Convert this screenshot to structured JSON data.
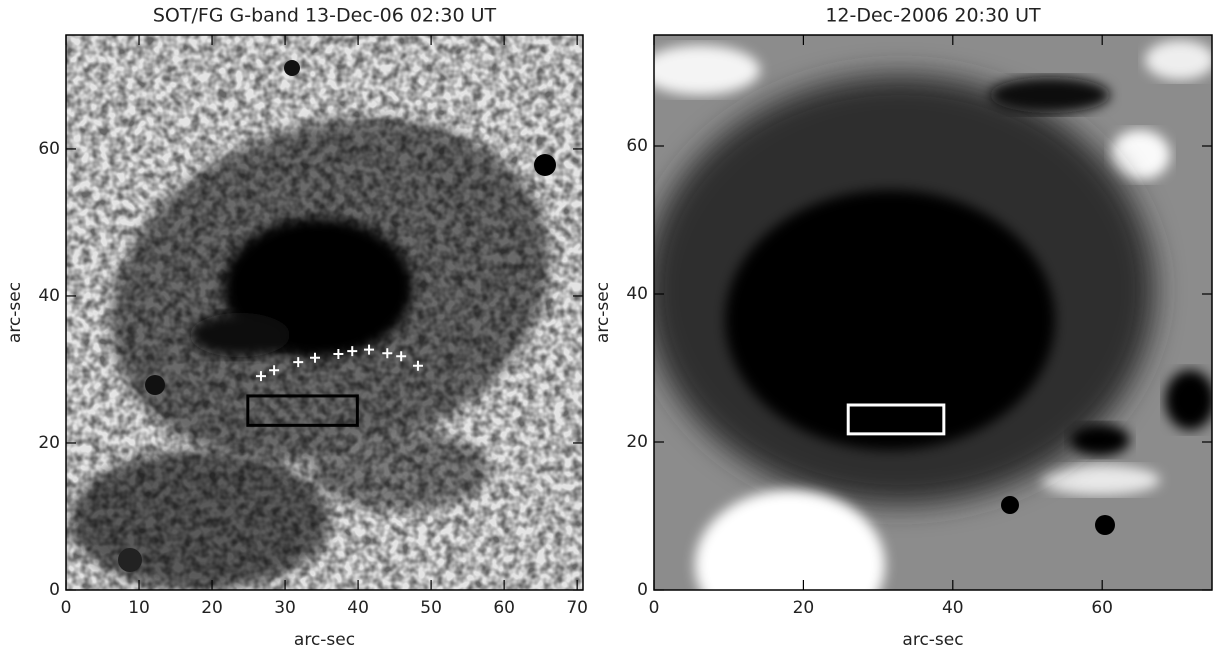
{
  "chart_data": [
    {
      "type": "image",
      "title": "SOT/FG G-band 13-Dec-06 02:30 UT",
      "xlabel": "arc-sec",
      "ylabel": "arc-sec",
      "xlim": [
        0,
        70.8
      ],
      "ylim": [
        0,
        75.5
      ],
      "xticks": [
        0,
        10,
        20,
        30,
        40,
        50,
        60,
        70
      ],
      "yticks": [
        0,
        20,
        40,
        60
      ],
      "markers": {
        "x": [
          26.7,
          28.5,
          31.8,
          34.1,
          37.3,
          39.2,
          41.5,
          44.0,
          45.9,
          48.2
        ],
        "y": [
          29.1,
          29.9,
          31.0,
          31.6,
          32.1,
          32.5,
          32.7,
          32.2,
          31.8,
          30.5
        ],
        "color": "#ffffff"
      },
      "box": {
        "x": [
          24.9,
          39.9
        ],
        "y": [
          22.4,
          26.4
        ],
        "color": "#000000"
      }
    },
    {
      "type": "image",
      "title": "12-Dec-2006 20:30 UT",
      "xlabel": "arc-sec",
      "ylabel": "arc-sec",
      "xlim": [
        0,
        74.7
      ],
      "ylim": [
        0,
        75
      ],
      "xticks": [
        0,
        20,
        40,
        60
      ],
      "yticks": [
        0,
        20,
        40,
        60
      ],
      "box": {
        "x": [
          26.0,
          38.8
        ],
        "y": [
          21.1,
          25.0
        ],
        "color": "#ffffff"
      }
    }
  ]
}
